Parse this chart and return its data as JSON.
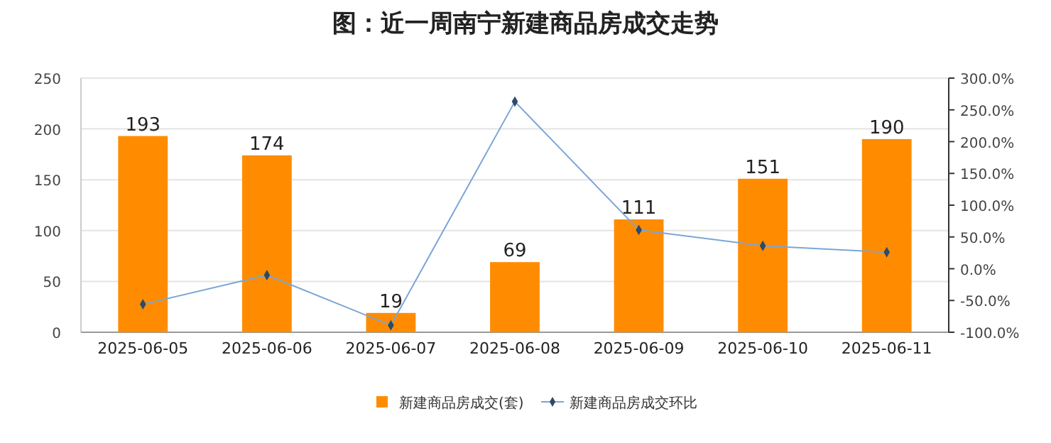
{
  "chart_data": {
    "type": "bar",
    "title": "图：近一周南宁新建商品房成交走势",
    "categories": [
      "2025-06-05",
      "2025-06-06",
      "2025-06-07",
      "2025-06-08",
      "2025-06-09",
      "2025-06-10",
      "2025-06-11"
    ],
    "series": [
      {
        "name": "新建商品房成交(套)",
        "color": "#ff8c00",
        "values": [
          193,
          174,
          19,
          69,
          111,
          151,
          190
        ],
        "value_labels": [
          "193",
          "174",
          "19",
          "69",
          "111",
          "151",
          "190"
        ]
      },
      {
        "name": "新建商品房成交环比",
        "type": "line",
        "axis": "y2",
        "color": "#7aa6d6",
        "marker": "diamond",
        "values": [
          -56,
          -10,
          -89,
          263,
          61,
          36,
          26
        ]
      }
    ],
    "ylim": [
      0,
      250
    ],
    "yticks": [
      0,
      50,
      100,
      150,
      200,
      250
    ],
    "y2lim": [
      -100,
      300
    ],
    "y2ticks": [
      {
        "value": -100,
        "label": "-100.0%"
      },
      {
        "value": -50,
        "label": "-50.0%"
      },
      {
        "value": 0,
        "label": "0.0%"
      },
      {
        "value": 50,
        "label": "50.0%"
      },
      {
        "value": 100,
        "label": "100.0%"
      },
      {
        "value": 150,
        "label": "150.0%"
      },
      {
        "value": 200,
        "label": "200.0%"
      },
      {
        "value": 250,
        "label": "250.0%"
      },
      {
        "value": 300,
        "label": "300.0%"
      }
    ],
    "grid": "y",
    "legend": "bottom"
  }
}
